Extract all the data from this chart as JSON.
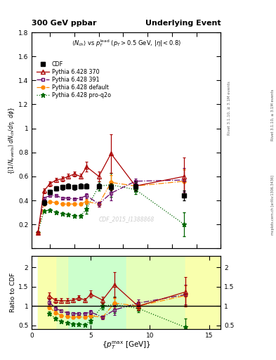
{
  "title_left": "300 GeV ppbar",
  "title_right": "Underlying Event",
  "subtitle": "<N_{ch}> vs p_T^{lead} (p_T > 0.5 GeV, |#eta| < 0.8)",
  "ylabel_main": "((1/N_{events}) dN_{ch}/d#eta, d#phi)",
  "ylabel_ratio": "Ratio to CDF",
  "xlabel": "{p_{T}^{max} [GeV]}",
  "watermark": "CDF_2015_I1388868",
  "rivet_label": "Rivet 3.1.10, >= 3.1M events",
  "arxiv_label": "mcplots.cern.ch [arXiv:1306.3436]",
  "cdf_x": [
    1.5,
    2.0,
    2.5,
    3.0,
    3.5,
    4.0,
    4.5,
    5.0,
    6.0,
    7.0,
    9.0,
    13.0
  ],
  "cdf_y": [
    0.38,
    0.47,
    0.5,
    0.51,
    0.52,
    0.51,
    0.52,
    0.52,
    0.52,
    0.51,
    0.52,
    0.44
  ],
  "cdf_yerr": [
    0.02,
    0.02,
    0.02,
    0.02,
    0.02,
    0.02,
    0.02,
    0.02,
    0.02,
    0.03,
    0.04,
    0.04
  ],
  "p370_x": [
    1.0,
    1.5,
    2.0,
    2.5,
    3.0,
    3.5,
    4.0,
    4.5,
    5.0,
    6.0,
    7.0,
    9.0,
    13.0
  ],
  "p370_y": [
    0.13,
    0.48,
    0.54,
    0.57,
    0.58,
    0.6,
    0.62,
    0.6,
    0.68,
    0.6,
    0.79,
    0.52,
    0.6
  ],
  "p370_yerr": [
    0.01,
    0.02,
    0.02,
    0.02,
    0.02,
    0.02,
    0.02,
    0.02,
    0.04,
    0.04,
    0.16,
    0.04,
    0.16
  ],
  "p391_x": [
    1.0,
    1.5,
    2.0,
    2.5,
    3.0,
    3.5,
    4.0,
    4.5,
    5.0,
    6.0,
    7.0,
    9.0,
    13.0
  ],
  "p391_y": [
    0.13,
    0.42,
    0.44,
    0.44,
    0.42,
    0.42,
    0.41,
    0.42,
    0.44,
    0.37,
    0.46,
    0.56,
    0.57
  ],
  "p391_yerr": [
    0.01,
    0.01,
    0.01,
    0.01,
    0.01,
    0.01,
    0.01,
    0.01,
    0.02,
    0.02,
    0.06,
    0.02,
    0.1
  ],
  "pdef_x": [
    1.0,
    1.5,
    2.0,
    2.5,
    3.0,
    3.5,
    4.0,
    4.5,
    5.0,
    6.0,
    7.0,
    9.0,
    13.0
  ],
  "pdef_y": [
    0.13,
    0.37,
    0.39,
    0.38,
    0.37,
    0.37,
    0.37,
    0.37,
    0.39,
    0.37,
    0.55,
    0.52,
    0.56
  ],
  "pdef_yerr": [
    0.01,
    0.01,
    0.01,
    0.01,
    0.01,
    0.01,
    0.01,
    0.01,
    0.02,
    0.02,
    0.06,
    0.02,
    0.1
  ],
  "pq2o_x": [
    1.0,
    1.5,
    2.0,
    2.5,
    3.0,
    3.5,
    4.0,
    4.5,
    5.0,
    6.0,
    7.0,
    9.0,
    13.0
  ],
  "pq2o_y": [
    0.13,
    0.31,
    0.32,
    0.3,
    0.29,
    0.28,
    0.27,
    0.27,
    0.33,
    0.52,
    0.53,
    0.49,
    0.2
  ],
  "pq2o_yerr": [
    0.01,
    0.01,
    0.01,
    0.01,
    0.01,
    0.01,
    0.01,
    0.01,
    0.04,
    0.04,
    0.1,
    0.04,
    0.1
  ],
  "color_cdf": "#000000",
  "color_370": "#aa0000",
  "color_391": "#660066",
  "color_def": "#ff8800",
  "color_q2o": "#006600",
  "ylim_main": [
    0.0,
    1.8
  ],
  "ylim_ratio": [
    0.4,
    2.3
  ],
  "xlim": [
    0.5,
    16.0
  ],
  "legend_entries": [
    "CDF",
    "Pythia 6.428 370",
    "Pythia 6.428 391",
    "Pythia 6.428 default",
    "Pythia 6.428 pro-q2o"
  ]
}
